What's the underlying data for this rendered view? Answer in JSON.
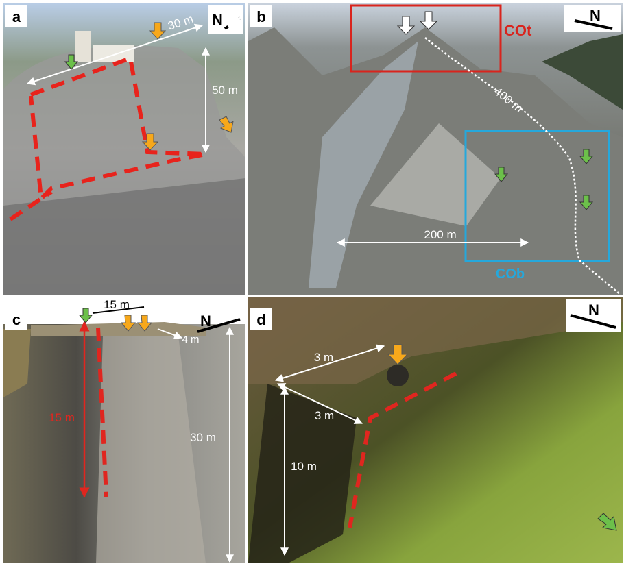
{
  "panels": [
    {
      "label": "a",
      "north": "N",
      "annotations": [
        "30 m",
        "50 m"
      ]
    },
    {
      "label": "b",
      "north": "N",
      "annotations": [
        "COt",
        "400 m",
        "200 m",
        "COb"
      ]
    },
    {
      "label": "c",
      "north": "N",
      "annotations": [
        "15 m",
        "4 m",
        "15 m",
        "30 m"
      ]
    },
    {
      "label": "d",
      "north": "N",
      "annotations": [
        "3 m",
        "3 m",
        "10 m"
      ]
    }
  ]
}
